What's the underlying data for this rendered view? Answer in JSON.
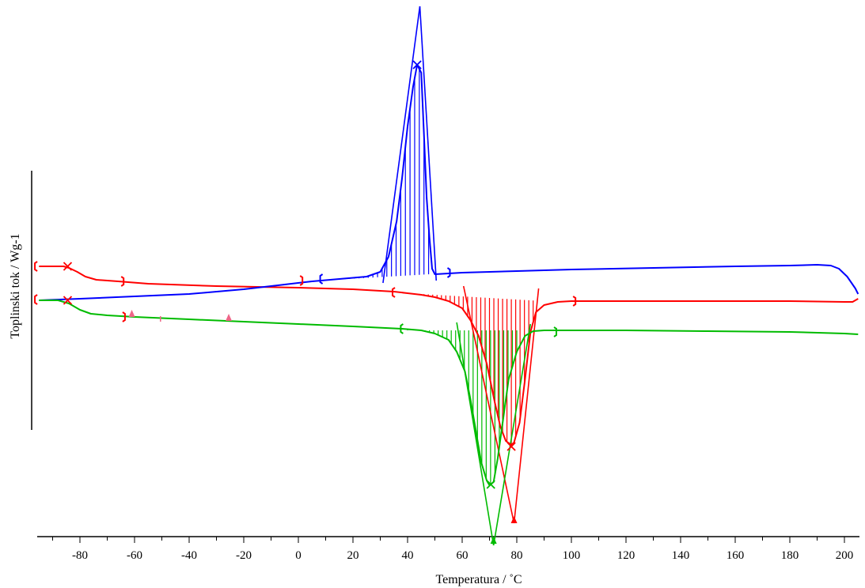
{
  "chart_data": {
    "type": "line",
    "title": "",
    "xlabel": "Temperatura / ˚C",
    "ylabel": "Toplinski tok / Wg-1",
    "xlim": [
      -95,
      205
    ],
    "x_ticks": [
      -80,
      -60,
      -40,
      -20,
      0,
      20,
      40,
      60,
      80,
      100,
      120,
      140,
      160,
      180,
      200
    ],
    "grid": false,
    "legend": "none",
    "series": [
      {
        "color": "#ff0000",
        "points": [
          [
            -95,
            337
          ],
          [
            -86,
            337
          ],
          [
            -84,
            339
          ],
          [
            -81,
            344
          ],
          [
            -78,
            350
          ],
          [
            -74,
            354
          ],
          [
            -66,
            356
          ],
          [
            -55,
            359
          ],
          [
            -30,
            362
          ],
          [
            0,
            364
          ],
          [
            20,
            366
          ],
          [
            30,
            368
          ],
          [
            35,
            369
          ],
          [
            40,
            371
          ],
          [
            45,
            373
          ],
          [
            50,
            376
          ],
          [
            55,
            381
          ],
          [
            60,
            390
          ],
          [
            63,
            405
          ],
          [
            66,
            425
          ],
          [
            69,
            460
          ],
          [
            72,
            510
          ],
          [
            74,
            540
          ],
          [
            76,
            558
          ],
          [
            78,
            563
          ],
          [
            79,
            560
          ],
          [
            81,
            535
          ],
          [
            83,
            480
          ],
          [
            85,
            420
          ],
          [
            87,
            395
          ],
          [
            90,
            386
          ],
          [
            95,
            382
          ],
          [
            100,
            381
          ],
          [
            120,
            381
          ],
          [
            150,
            381
          ],
          [
            180,
            381
          ],
          [
            200,
            382
          ],
          [
            203,
            382
          ],
          [
            205,
            378
          ]
        ]
      },
      {
        "color": "#0000ff",
        "points": [
          [
            -95,
            380
          ],
          [
            -80,
            378
          ],
          [
            -60,
            375
          ],
          [
            -40,
            372
          ],
          [
            -20,
            366
          ],
          [
            -5,
            360
          ],
          [
            5,
            356
          ],
          [
            15,
            353
          ],
          [
            25,
            350
          ],
          [
            30,
            344
          ],
          [
            33,
            325
          ],
          [
            36,
            280
          ],
          [
            38,
            225
          ],
          [
            40,
            160
          ],
          [
            42,
            110
          ],
          [
            43.5,
            82
          ],
          [
            45,
            92
          ],
          [
            46,
            170
          ],
          [
            47,
            250
          ],
          [
            48,
            300
          ],
          [
            49,
            340
          ],
          [
            50,
            347
          ],
          [
            55,
            346
          ],
          [
            60,
            345
          ],
          [
            80,
            343
          ],
          [
            100,
            341
          ],
          [
            130,
            339
          ],
          [
            160,
            337
          ],
          [
            180,
            336
          ],
          [
            190,
            335
          ],
          [
            195,
            336
          ],
          [
            198,
            340
          ],
          [
            201,
            350
          ],
          [
            204,
            365
          ],
          [
            205,
            372
          ]
        ]
      },
      {
        "color": "#00bb00",
        "points": [
          [
            -95,
            380
          ],
          [
            -88,
            380
          ],
          [
            -84,
            384
          ],
          [
            -80,
            392
          ],
          [
            -76,
            397
          ],
          [
            -70,
            399
          ],
          [
            -60,
            401
          ],
          [
            -40,
            404
          ],
          [
            -20,
            407
          ],
          [
            0,
            410
          ],
          [
            20,
            413
          ],
          [
            38,
            416
          ],
          [
            45,
            418
          ],
          [
            50,
            422
          ],
          [
            55,
            430
          ],
          [
            58,
            445
          ],
          [
            61,
            470
          ],
          [
            63,
            505
          ],
          [
            65,
            545
          ],
          [
            67,
            585
          ],
          [
            69,
            608
          ],
          [
            70,
            614
          ],
          [
            71.5,
            610
          ],
          [
            73,
            580
          ],
          [
            75,
            530
          ],
          [
            77,
            480
          ],
          [
            80,
            445
          ],
          [
            83,
            425
          ],
          [
            86,
            419
          ],
          [
            90,
            418
          ],
          [
            100,
            418
          ],
          [
            120,
            418
          ],
          [
            150,
            419
          ],
          [
            180,
            420
          ],
          [
            200,
            422
          ],
          [
            205,
            423
          ]
        ]
      }
    ],
    "annotations": [
      {
        "color": "#0000ff",
        "x": 43.5,
        "peak": "max"
      },
      {
        "color": "#ff0000",
        "x": 78,
        "peak": "min"
      },
      {
        "color": "#00bb00",
        "x": 70,
        "peak": "min"
      }
    ]
  }
}
